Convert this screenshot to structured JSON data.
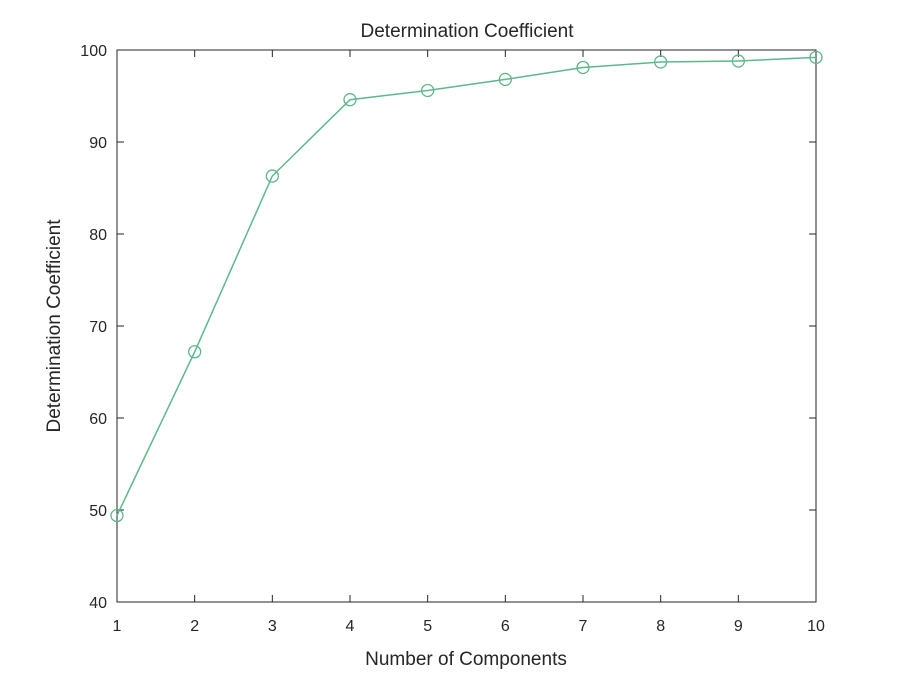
{
  "chart_data": {
    "type": "line",
    "title": "Determination Coefficient",
    "xlabel": "Number of Components",
    "ylabel": "Determination Coefficient",
    "xlim": [
      1,
      10
    ],
    "ylim": [
      40,
      100
    ],
    "xticks": [
      1,
      2,
      3,
      4,
      5,
      6,
      7,
      8,
      9,
      10
    ],
    "yticks": [
      40,
      50,
      60,
      70,
      80,
      90,
      100
    ],
    "grid": false,
    "marker": "circle-open",
    "color": "#5cb88a",
    "series": [
      {
        "x": [
          1,
          2,
          3,
          4,
          5,
          6,
          7,
          8,
          9,
          10
        ],
        "values": [
          49.4,
          67.2,
          86.3,
          94.6,
          95.6,
          96.8,
          98.1,
          98.7,
          98.8,
          99.2
        ]
      }
    ]
  }
}
